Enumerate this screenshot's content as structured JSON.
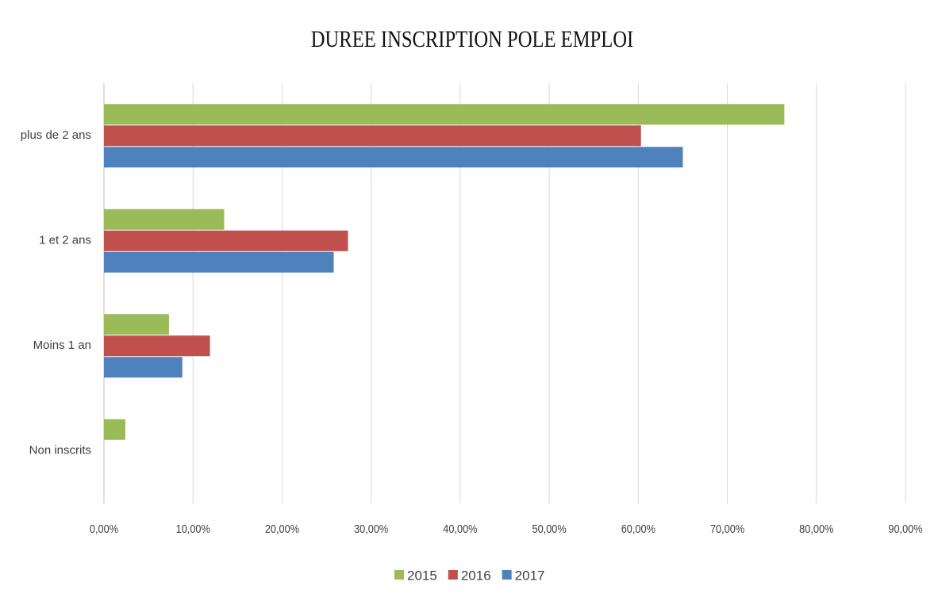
{
  "chart_data": {
    "type": "bar",
    "orientation": "horizontal",
    "title": "DUREE  INSCRIPTION POLE EMPLOI",
    "categories": [
      "plus de 2 ans",
      "1 et 2 ans",
      "Moins 1 an",
      "Non inscrits"
    ],
    "series": [
      {
        "name": "2015",
        "color": "#9bbb59",
        "values": [
          76.4,
          13.5,
          7.3,
          2.4
        ]
      },
      {
        "name": "2016",
        "color": "#c0504d",
        "values": [
          60.3,
          27.4,
          11.9,
          0
        ]
      },
      {
        "name": "2017",
        "color": "#4f81bd",
        "values": [
          65.0,
          25.8,
          8.8,
          0
        ]
      }
    ],
    "xlim": [
      0,
      90
    ],
    "xticks": [
      {
        "value": 0,
        "label": "0,00%"
      },
      {
        "value": 10,
        "label": "10,00%"
      },
      {
        "value": 20,
        "label": "20,00%"
      },
      {
        "value": 30,
        "label": "30,00%"
      },
      {
        "value": 40,
        "label": "40,00%"
      },
      {
        "value": 50,
        "label": "50,00%"
      },
      {
        "value": 60,
        "label": "60,00%"
      },
      {
        "value": 70,
        "label": "70,00%"
      },
      {
        "value": 80,
        "label": "80,00%"
      },
      {
        "value": 90,
        "label": "90,00%"
      }
    ],
    "grid": true,
    "legend": "bottom"
  }
}
